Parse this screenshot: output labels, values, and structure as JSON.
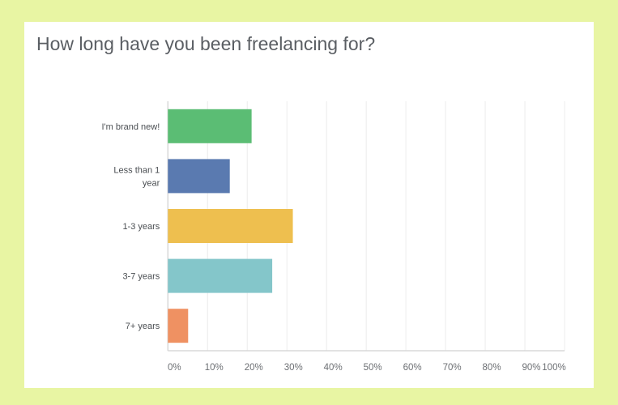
{
  "chart_data": {
    "type": "bar",
    "orientation": "horizontal",
    "title": "How long have you been freelancing for?",
    "categories": [
      [
        "I'm brand new!"
      ],
      [
        "Less than 1",
        "year"
      ],
      [
        "1-3 years"
      ],
      [
        "3-7 years"
      ],
      [
        "7+ years"
      ]
    ],
    "values": [
      21.1,
      15.6,
      31.5,
      26.3,
      5.1
    ],
    "colors": [
      "#5bbd74",
      "#5a7ab0",
      "#eebf4f",
      "#84c6ca",
      "#ef9162"
    ],
    "xlim": [
      0,
      100
    ],
    "xticks": [
      "0%",
      "10%",
      "20%",
      "30%",
      "40%",
      "50%",
      "60%",
      "70%",
      "80%",
      "90%",
      "100%"
    ],
    "grid": true,
    "unit": "%"
  }
}
